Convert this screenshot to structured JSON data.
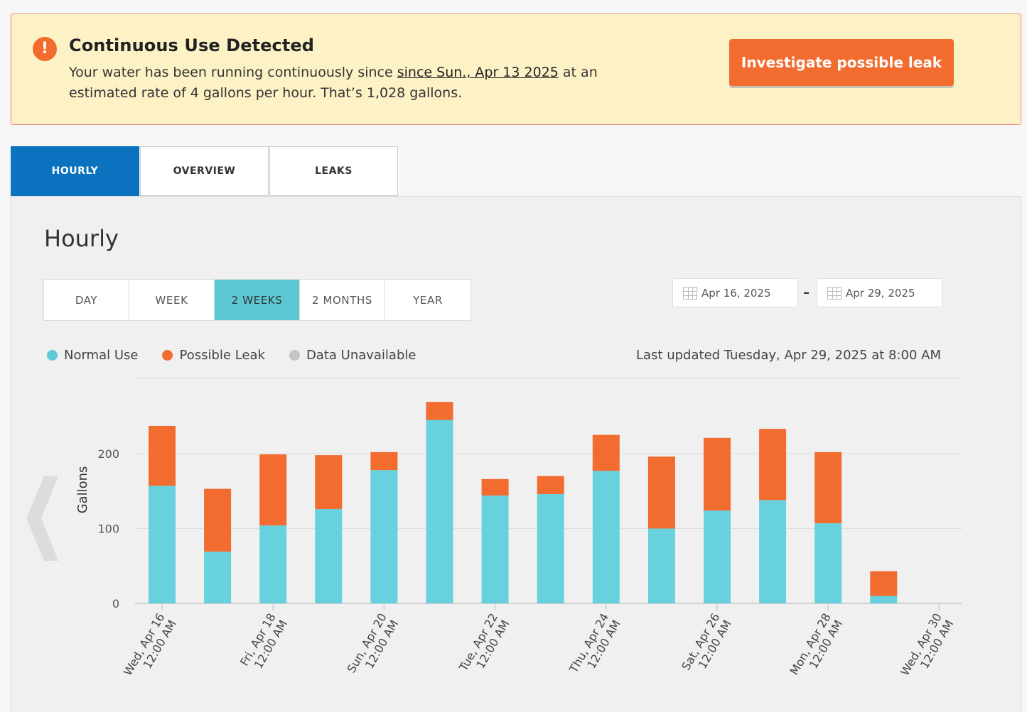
{
  "alert": {
    "icon": "exclamation-icon",
    "title": "Continuous Use Detected",
    "body_prefix": "Your water has been running continuously since ",
    "body_link": "since Sun., Apr 13 2025",
    "body_suffix": " at an estimated rate of 4 gallons per hour. That’s 1,028 gallons.",
    "button_label": "Investigate possible leak",
    "colors": {
      "background": "#fdf2c5",
      "accent": "#f26b2f"
    }
  },
  "tabs": [
    {
      "label": "HOURLY",
      "active": true
    },
    {
      "label": "OVERVIEW",
      "active": false
    },
    {
      "label": "LEAKS",
      "active": false
    }
  ],
  "panel": {
    "title": "Hourly",
    "ranges": [
      {
        "label": "DAY",
        "active": false
      },
      {
        "label": "WEEK",
        "active": false
      },
      {
        "label": "2 WEEKS",
        "active": true
      },
      {
        "label": "2 MONTHS",
        "active": false
      },
      {
        "label": "YEAR",
        "active": false
      }
    ],
    "date_start": "Apr 16, 2025",
    "date_end": "Apr 29, 2025",
    "date_separator": "–",
    "legend": [
      {
        "label": "Normal Use",
        "color": "#67d1de"
      },
      {
        "label": "Possible Leak",
        "color": "#f26b2f"
      },
      {
        "label": "Data Unavailable",
        "color": "#c4c4c4"
      }
    ],
    "last_updated": "Last updated Tuesday, Apr 29, 2025 at 8:00 AM",
    "prev_icon": "chevron-left-icon"
  },
  "chart_data": {
    "type": "bar",
    "stacked": true,
    "ylabel": "Gallons",
    "ylim": [
      0,
      300
    ],
    "yticks": [
      0,
      100,
      200
    ],
    "grid": true,
    "categories": [
      "Apr 16",
      "Apr 17",
      "Apr 18",
      "Apr 19",
      "Apr 20",
      "Apr 21",
      "Apr 22",
      "Apr 23",
      "Apr 24",
      "Apr 25",
      "Apr 26",
      "Apr 27",
      "Apr 28",
      "Apr 29"
    ],
    "series": [
      {
        "name": "Normal Use",
        "color": "#67d1de",
        "values": [
          157,
          69,
          104,
          126,
          178,
          245,
          144,
          146,
          177,
          100,
          124,
          138,
          107,
          10
        ]
      },
      {
        "name": "Possible Leak",
        "color": "#f26b2f",
        "values": [
          80,
          84,
          95,
          72,
          24,
          24,
          22,
          24,
          48,
          96,
          97,
          95,
          95,
          33
        ]
      }
    ],
    "xtick_labels": [
      {
        "line1": "Wed, Apr 16",
        "line2": "12:00 AM",
        "day_index": 0
      },
      {
        "line1": "Fri, Apr 18",
        "line2": "12:00 AM",
        "day_index": 2
      },
      {
        "line1": "Sun, Apr 20",
        "line2": "12:00 AM",
        "day_index": 4
      },
      {
        "line1": "Tue, Apr 22",
        "line2": "12:00 AM",
        "day_index": 6
      },
      {
        "line1": "Thu, Apr 24",
        "line2": "12:00 AM",
        "day_index": 8
      },
      {
        "line1": "Sat, Apr 26",
        "line2": "12:00 AM",
        "day_index": 10
      },
      {
        "line1": "Mon, Apr 28",
        "line2": "12:00 AM",
        "day_index": 12
      },
      {
        "line1": "Wed, Apr 30",
        "line2": "12:00 AM",
        "day_index": 14
      }
    ]
  }
}
